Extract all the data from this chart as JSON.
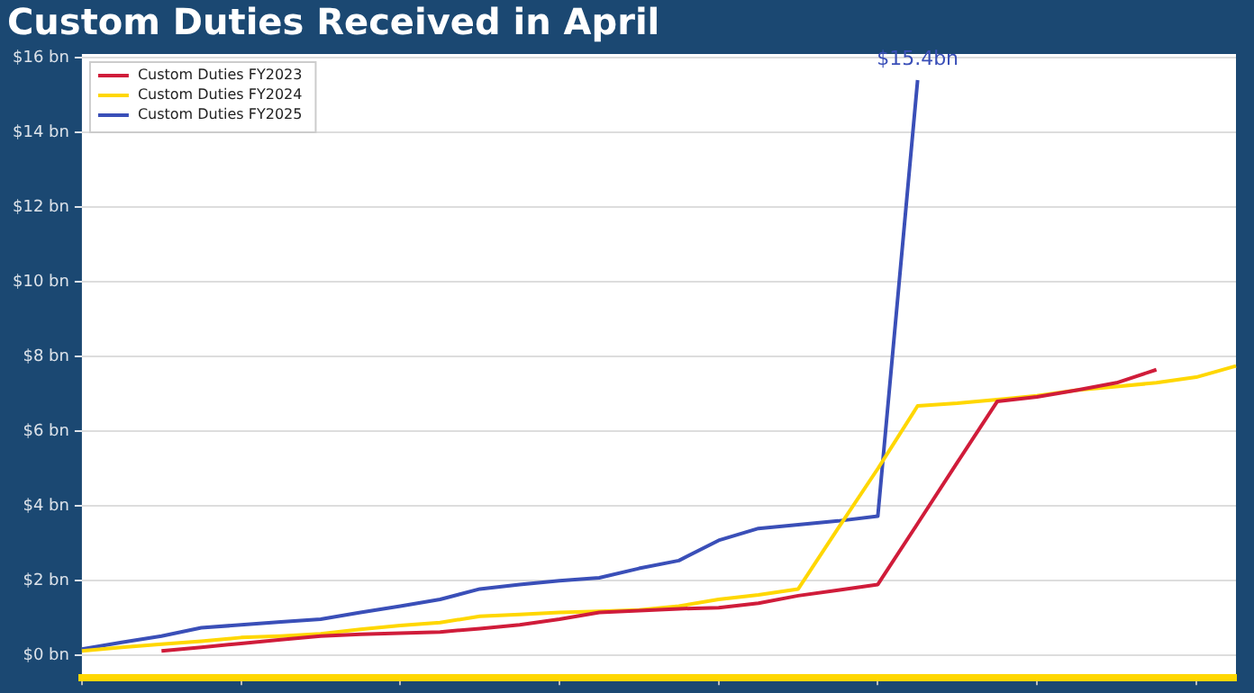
{
  "chart_data": {
    "type": "line",
    "title": "Custom Duties Received in April",
    "categories": [
      null,
      null,
      null,
      null,
      null,
      null,
      null,
      null,
      null,
      null,
      null,
      null,
      null,
      null,
      null,
      null,
      null,
      null,
      null,
      null,
      null,
      null,
      null,
      null,
      null,
      null,
      null,
      null,
      null,
      null
    ],
    "series": [
      {
        "name": "Custom Duties FY2023",
        "color": "#d01c3a",
        "values": [
          null,
          null,
          0.12,
          0.22,
          0.32,
          0.42,
          0.52,
          0.57,
          0.6,
          0.63,
          0.72,
          0.82,
          0.97,
          1.15,
          1.2,
          1.25,
          1.28,
          1.4,
          1.6,
          1.75,
          1.9,
          3.53,
          5.17,
          6.8,
          6.92,
          7.1,
          7.3,
          7.65,
          null,
          null
        ]
      },
      {
        "name": "Custom Duties FY2024",
        "color": "#ffd700",
        "values": [
          0.12,
          0.22,
          0.3,
          0.38,
          0.48,
          0.52,
          0.58,
          0.7,
          0.8,
          0.88,
          1.05,
          1.1,
          1.15,
          1.18,
          1.22,
          1.32,
          1.5,
          1.62,
          1.78,
          3.4,
          5.0,
          6.68,
          6.75,
          6.85,
          6.95,
          7.1,
          7.2,
          7.3,
          7.45,
          7.75
        ]
      },
      {
        "name": "Custom Duties FY2025",
        "color": "#3a4fb8",
        "values": [
          0.17,
          0.35,
          0.52,
          0.74,
          0.82,
          0.9,
          0.97,
          1.15,
          1.32,
          1.5,
          1.78,
          1.9,
          2.0,
          2.08,
          2.33,
          2.54,
          3.08,
          3.4,
          3.5,
          3.6,
          3.73,
          15.4,
          null,
          null,
          null,
          null,
          null,
          null,
          null,
          null
        ]
      }
    ],
    "ylim": [
      -0.6,
      16.1
    ],
    "yticks": [
      {
        "value": 0,
        "label": "$0 bn"
      },
      {
        "value": 2,
        "label": "$2 bn"
      },
      {
        "value": 4,
        "label": "$4 bn"
      },
      {
        "value": 6,
        "label": "$6 bn"
      },
      {
        "value": 8,
        "label": "$8 bn"
      },
      {
        "value": 10,
        "label": "$10 bn"
      },
      {
        "value": 12,
        "label": "$12 bn"
      },
      {
        "value": 14,
        "label": "$14 bn"
      },
      {
        "value": 16,
        "label": "$16 bn"
      }
    ],
    "annotations": [
      {
        "text": "$15.4bn",
        "y": 15.4
      }
    ],
    "grid": "y",
    "legend": "top left",
    "marker": "none",
    "line_style": "solid",
    "tick_labels": "y"
  }
}
